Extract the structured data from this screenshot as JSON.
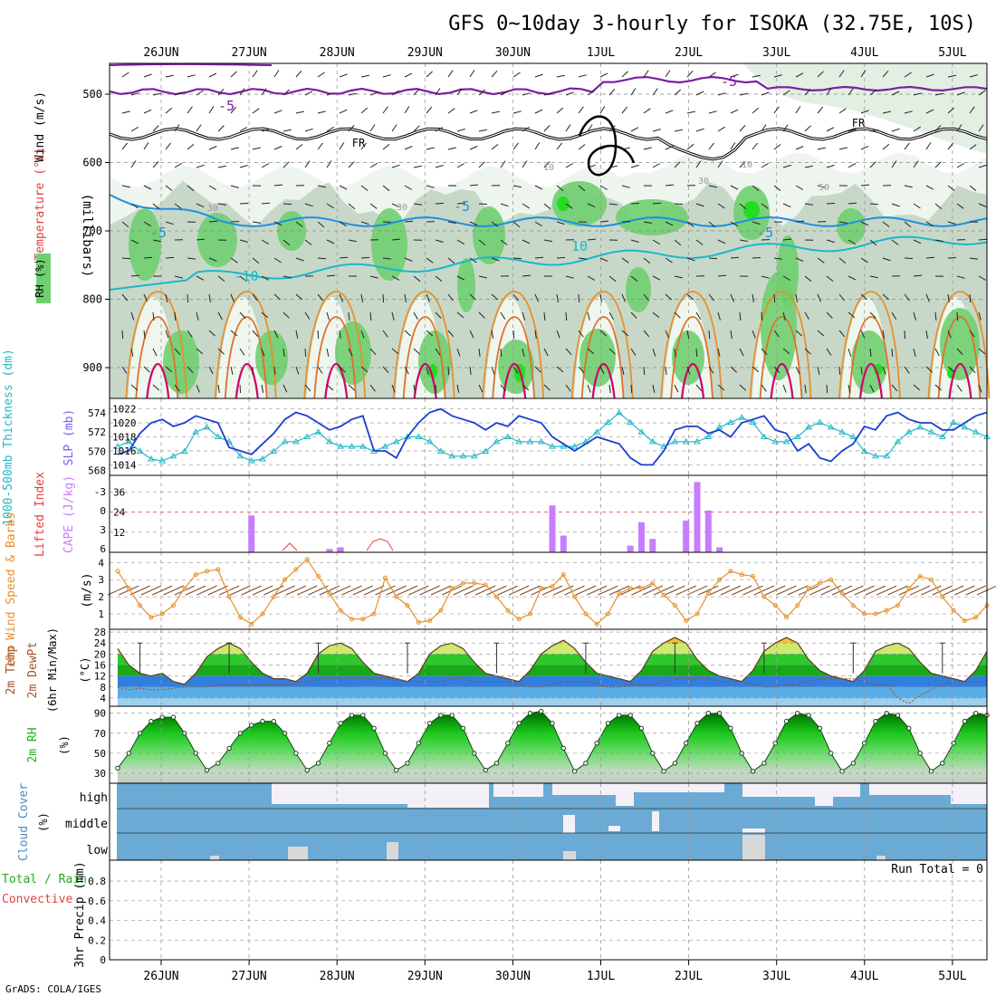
{
  "title": "GFS 0~10day 3-hourly for ISOKA (32.75E, 10S)",
  "footer": "GrADS: COLA/IGES",
  "x_axis": {
    "labels": [
      "26JUN",
      "27JUN",
      "28JUN",
      "29JUN",
      "30JUN",
      "1JUL",
      "2JUL",
      "3JUL",
      "4JUL",
      "5JUL"
    ]
  },
  "colors": {
    "wind_line": "#7b1fa2",
    "temp_line": "#1aa3d9",
    "temp_line_warm": "#e6902a",
    "temp_line_hot": "#d4006b",
    "fr_line": "#000000",
    "rh_light": "#eef5ee",
    "rh_mid": "#c8d8c8",
    "rh_green": "#6fcf6f",
    "rh_bright": "#22dd22",
    "slp_line": "#1a3fcf",
    "thick_line": "#22b8c8",
    "cape_bar": "#c77dff",
    "wind_speed": "#e6902a",
    "cloud_blue": "#6aaad4",
    "cloud_white": "#f4f0f8",
    "rh2m_green": "#1ab41a"
  },
  "panels": {
    "upper": {
      "ylabels": [
        "Wind (m/s)",
        "Temperature (°C)",
        "RH (%)"
      ],
      "axis_title": "(millibars)",
      "ticks": [
        "500",
        "600",
        "700",
        "800",
        "900"
      ],
      "contour_labels": {
        "minus5_upper": "-5",
        "fr": "FR",
        "minus5_mid": "-5",
        "minus10": "-10",
        "r10": "10",
        "r30": "30",
        "r50": "50"
      }
    },
    "slp": {
      "ylabels": [
        "1000-500mb Thickness (dm)",
        "SLP (mb)"
      ],
      "left_ticks": [
        "574",
        "572",
        "570",
        "568"
      ],
      "right_ticks": [
        "1022",
        "1020",
        "1018",
        "1016",
        "1014"
      ]
    },
    "cape": {
      "ylabels": [
        "Lifted Index",
        "CAPE (J/kg)"
      ],
      "left_ticks": [
        "-3",
        "0",
        "3",
        "6"
      ],
      "right_ticks": [
        "36",
        "24",
        "12"
      ]
    },
    "wind10": {
      "ylabels": [
        "10m Wind Speed & Barbs",
        "(m/s)"
      ],
      "ticks": [
        "4",
        "3",
        "2",
        "1"
      ]
    },
    "temp2m": {
      "ylabels": [
        "2m Temp",
        "2m DewPt",
        "(6hr Min/Max)",
        "(°C)"
      ],
      "ticks": [
        "28",
        "24",
        "20",
        "16",
        "12",
        "8",
        "4"
      ]
    },
    "rh2m": {
      "ylabels": [
        "2m RH",
        "(%)"
      ],
      "ticks": [
        "90",
        "70",
        "50",
        "30"
      ]
    },
    "cloud": {
      "ylabels": [
        "Cloud Cover",
        "(%)"
      ],
      "levels": [
        "high",
        "middle",
        "low"
      ]
    },
    "precip": {
      "ylabels": [
        "Total / Rain",
        "Convective",
        "3hr Precip (mm)"
      ],
      "ticks": [
        "0.8",
        "0.6",
        "0.4",
        "0.2",
        "0"
      ],
      "ticks_full": [
        "0.8",
        "0.6",
        "0.4",
        "0.2",
        "0"
      ],
      "run_total": "Run Total = 0"
    }
  },
  "chart_data": [
    {
      "type": "line",
      "name_key": "slp",
      "x_days": [
        0,
        0.125,
        0.25,
        0.375,
        0.5,
        0.625,
        0.75,
        0.875,
        1,
        1.125,
        1.25,
        1.375,
        1.5,
        1.625,
        1.75,
        1.875,
        2,
        2.125,
        2.25,
        2.375,
        2.5,
        2.625,
        2.75,
        2.875,
        3,
        3.125,
        3.25,
        3.375,
        3.5,
        3.625,
        3.75,
        3.875,
        4,
        4.125,
        4.25,
        4.375,
        4.5,
        4.625,
        4.75,
        4.875,
        5,
        5.125,
        5.25,
        5.375,
        5.5,
        5.625,
        5.75,
        5.875,
        6,
        6.125,
        6.25,
        6.375,
        6.5,
        6.625,
        6.75,
        6.875,
        7,
        7.125,
        7.25,
        7.375,
        7.5,
        7.625,
        7.75,
        7.875,
        8,
        8.125,
        8.25,
        8.375,
        8.5,
        8.625,
        8.75,
        8.875,
        9,
        9.125,
        9.25,
        9.375,
        9.5,
        9.625,
        9.75
      ],
      "series": [
        {
          "name": "SLP (mb)",
          "values": [
            1015.5,
            1016,
            1018.5,
            1020,
            1020.5,
            1019.5,
            1020,
            1021,
            1020.5,
            1020,
            1016.5,
            1016,
            1015.5,
            1017,
            1018.5,
            1020.5,
            1021.5,
            1021,
            1020,
            1019,
            1019.5,
            1020.5,
            1021,
            1016,
            1016,
            1015,
            1018,
            1020,
            1021.5,
            1022,
            1021,
            1020.5,
            1020,
            1019,
            1020,
            1019.5,
            1021,
            1020.5,
            1020,
            1018,
            1017,
            1016,
            1017,
            1018,
            1017.5,
            1017,
            1015,
            1014,
            1014,
            1016,
            1019,
            1019.5,
            1019.5,
            1018.5,
            1019,
            1018,
            1020,
            1020.5,
            1021,
            1019,
            1018.5,
            1016,
            1017,
            1015,
            1014.5,
            1016,
            1017,
            1019.5,
            1019,
            1021,
            1021.5,
            1020.5,
            1020,
            1020,
            1019,
            1019,
            1020,
            1021,
            1021.5
          ]
        },
        {
          "name": "Thickness (dm)",
          "values": [
            570.5,
            571,
            570,
            569.2,
            569,
            569.5,
            570,
            572,
            572.5,
            571.5,
            571,
            569.5,
            569,
            569.2,
            570,
            571,
            571,
            571.5,
            572,
            571,
            570.5,
            570.5,
            570.5,
            570,
            570.5,
            571,
            571.5,
            571.5,
            571,
            570,
            569.5,
            569.5,
            569.5,
            570,
            571,
            571.5,
            571,
            571,
            571,
            570.5,
            570.5,
            570.5,
            571,
            572,
            573,
            574,
            573,
            572,
            571,
            570.5,
            571,
            571,
            571,
            571.5,
            572.5,
            573,
            573.5,
            573,
            571.5,
            571,
            571,
            571.5,
            572.5,
            573,
            572.5,
            572,
            571.5,
            570,
            569.5,
            569.5,
            571,
            572,
            572.5,
            572,
            571.5,
            573,
            572.5,
            572,
            571.5
          ]
        }
      ]
    },
    {
      "type": "bar",
      "name_key": "cape",
      "x_days": [
        1.5,
        3.0,
        4.5,
        4.625,
        4.875,
        5.0,
        5.25,
        5.5,
        5.625,
        5.75,
        5.875,
        6.0,
        6.125,
        6.25,
        6.375,
        6.5,
        6.625
      ],
      "series": [
        {
          "name": "CAPE (J/kg)",
          "values": [
            22,
            0,
            0,
            0,
            28,
            10,
            0,
            0,
            0,
            4,
            18,
            8,
            0,
            0,
            19,
            42,
            25
          ]
        }
      ],
      "extra_bars": [
        {
          "x_day": 2.375,
          "value": 2
        },
        {
          "x_day": 2.5,
          "value": 3
        },
        {
          "x_day": 6.75,
          "value": 3
        }
      ]
    },
    {
      "type": "line",
      "name_key": "wind10",
      "x_days": [
        0,
        0.125,
        0.25,
        0.375,
        0.5,
        0.625,
        0.75,
        0.875,
        1,
        1.125,
        1.25,
        1.375,
        1.5,
        1.625,
        1.75,
        1.875,
        2,
        2.125,
        2.25,
        2.375,
        2.5,
        2.625,
        2.75,
        2.875,
        3,
        3.125,
        3.25,
        3.375,
        3.5,
        3.625,
        3.75,
        3.875,
        4,
        4.125,
        4.25,
        4.375,
        4.5,
        4.625,
        4.75,
        4.875,
        5,
        5.125,
        5.25,
        5.375,
        5.5,
        5.625,
        5.75,
        5.875,
        6,
        6.125,
        6.25,
        6.375,
        6.5,
        6.625,
        6.75,
        6.875,
        7,
        7.125,
        7.25,
        7.375,
        7.5,
        7.625,
        7.75,
        7.875,
        8,
        8.125,
        8.25,
        8.375,
        8.5,
        8.625,
        8.75,
        8.875,
        9,
        9.125,
        9.25,
        9.375,
        9.5,
        9.625,
        9.75
      ],
      "series": [
        {
          "name": "10m Wind Speed (m/s)",
          "values": [
            3.5,
            2.5,
            1.5,
            0.8,
            1.0,
            1.5,
            2.5,
            3.3,
            3.5,
            3.6,
            2.0,
            0.8,
            0.4,
            1.0,
            2.0,
            3.0,
            3.6,
            4.2,
            3.2,
            2.2,
            1.2,
            0.7,
            0.7,
            1.0,
            3.1,
            2.0,
            1.5,
            0.5,
            0.6,
            1.2,
            2.5,
            2.8,
            2.8,
            2.7,
            2.0,
            1.2,
            0.7,
            1.0,
            2.5,
            2.6,
            3.3,
            2.0,
            1.0,
            0.4,
            1.0,
            2.2,
            2.5,
            2.5,
            2.8,
            2.1,
            1.5,
            0.6,
            1.0,
            2.2,
            3.0,
            3.5,
            3.3,
            3.2,
            2.0,
            1.5,
            0.8,
            1.5,
            2.5,
            2.8,
            3.0,
            2.2,
            1.5,
            1.0,
            1.0,
            1.2,
            1.5,
            2.5,
            3.2,
            3.0,
            2.0,
            1.2,
            0.6,
            0.8,
            1.5
          ]
        }
      ]
    },
    {
      "type": "area",
      "name_key": "temp2m",
      "x_days": [
        0,
        0.125,
        0.25,
        0.375,
        0.5,
        0.625,
        0.75,
        0.875,
        1,
        1.125,
        1.25,
        1.375,
        1.5,
        1.625,
        1.75,
        1.875,
        2,
        2.125,
        2.25,
        2.375,
        2.5,
        2.625,
        2.75,
        2.875,
        3,
        3.125,
        3.25,
        3.375,
        3.5,
        3.625,
        3.75,
        3.875,
        4,
        4.125,
        4.25,
        4.375,
        4.5,
        4.625,
        4.75,
        4.875,
        5,
        5.125,
        5.25,
        5.375,
        5.5,
        5.625,
        5.75,
        5.875,
        6,
        6.125,
        6.25,
        6.375,
        6.5,
        6.625,
        6.75,
        6.875,
        7,
        7.125,
        7.25,
        7.375,
        7.5,
        7.625,
        7.75,
        7.875,
        8,
        8.125,
        8.25,
        8.375,
        8.5,
        8.625,
        8.75,
        8.875,
        9,
        9.125,
        9.25,
        9.375,
        9.5,
        9.625,
        9.75
      ],
      "series": [
        {
          "name": "2m Temp (°C)",
          "values": [
            22,
            16,
            13,
            12,
            13,
            10,
            9,
            13,
            19,
            22,
            24,
            22,
            17,
            13,
            11,
            11,
            10,
            13,
            20,
            23,
            24,
            22,
            17,
            13,
            12,
            11,
            10,
            13,
            20,
            23,
            24,
            22,
            17,
            13,
            12,
            11,
            10,
            14,
            20,
            23,
            25,
            22,
            17,
            13,
            12,
            11,
            10,
            14,
            21,
            24,
            26,
            24,
            18,
            14,
            12,
            11,
            10,
            14,
            21,
            24,
            26,
            24,
            18,
            14,
            12,
            11,
            10,
            14,
            21,
            23,
            24,
            22,
            17,
            13,
            12,
            11,
            10,
            14,
            21
          ]
        },
        {
          "name": "2m DewPt (°C)",
          "values": [
            8,
            7,
            7.5,
            7,
            7,
            7.5,
            8,
            8,
            8,
            8.5,
            9,
            9,
            9,
            9,
            9,
            9,
            9,
            10,
            11,
            11,
            11,
            11,
            11,
            11,
            11,
            11,
            10,
            10,
            10,
            10,
            11,
            11,
            10,
            10,
            10,
            10,
            9,
            8,
            8,
            9,
            10,
            10,
            10,
            9,
            8,
            8,
            9,
            9,
            9,
            10,
            11,
            11,
            11,
            11,
            10,
            10,
            10,
            9,
            8,
            8,
            9,
            9,
            10,
            11,
            11,
            11,
            11,
            10,
            9,
            9,
            4,
            2,
            5,
            7,
            9,
            10,
            10,
            10,
            10
          ]
        }
      ]
    },
    {
      "type": "area",
      "name_key": "rh2m",
      "x_days": [
        0,
        0.125,
        0.25,
        0.375,
        0.5,
        0.625,
        0.75,
        0.875,
        1,
        1.125,
        1.25,
        1.375,
        1.5,
        1.625,
        1.75,
        1.875,
        2,
        2.125,
        2.25,
        2.375,
        2.5,
        2.625,
        2.75,
        2.875,
        3,
        3.125,
        3.25,
        3.375,
        3.5,
        3.625,
        3.75,
        3.875,
        4,
        4.125,
        4.25,
        4.375,
        4.5,
        4.625,
        4.75,
        4.875,
        5,
        5.125,
        5.25,
        5.375,
        5.5,
        5.625,
        5.75,
        5.875,
        6,
        6.125,
        6.25,
        6.375,
        6.5,
        6.625,
        6.75,
        6.875,
        7,
        7.125,
        7.25,
        7.375,
        7.5,
        7.625,
        7.75,
        7.875,
        8,
        8.125,
        8.25,
        8.375,
        8.5,
        8.625,
        8.75,
        8.875,
        9,
        9.125,
        9.25,
        9.375,
        9.5,
        9.625,
        9.75
      ],
      "series": [
        {
          "name": "2m RH (%)",
          "values": [
            35,
            50,
            70,
            82,
            86,
            86,
            70,
            50,
            33,
            40,
            55,
            70,
            78,
            82,
            82,
            70,
            50,
            33,
            40,
            60,
            80,
            88,
            88,
            75,
            50,
            33,
            40,
            60,
            80,
            88,
            88,
            75,
            50,
            33,
            40,
            60,
            80,
            90,
            92,
            80,
            55,
            32,
            40,
            60,
            80,
            88,
            88,
            75,
            50,
            32,
            40,
            60,
            80,
            90,
            90,
            75,
            50,
            32,
            40,
            60,
            82,
            90,
            88,
            75,
            50,
            32,
            40,
            60,
            82,
            90,
            88,
            75,
            50,
            32,
            40,
            60,
            82,
            90,
            88
          ]
        }
      ]
    }
  ]
}
